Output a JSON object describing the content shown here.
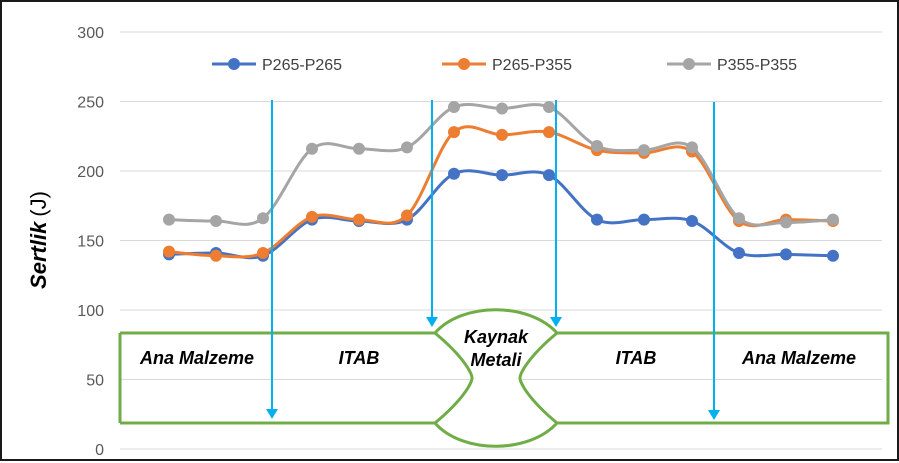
{
  "chart_data": {
    "type": "line",
    "ylabel_main": "Sertlik",
    "ylabel_unit": "(J)",
    "ylim": [
      0,
      300
    ],
    "yticks": [
      0,
      50,
      100,
      150,
      200,
      250,
      300
    ],
    "grid": true,
    "legend_position": "top",
    "point_count": 15,
    "series": [
      {
        "name": "P265-P265",
        "color": "#4472C4",
        "values": [
          140,
          141,
          139,
          165,
          164,
          165,
          198,
          197,
          197,
          165,
          165,
          164,
          141,
          140,
          139
        ]
      },
      {
        "name": "P265-P355",
        "color": "#ED7D31",
        "values": [
          142,
          139,
          141,
          167,
          165,
          168,
          228,
          226,
          228,
          215,
          213,
          214,
          164,
          165,
          164
        ]
      },
      {
        "name": "P355-P355",
        "color": "#A5A5A5",
        "values": [
          165,
          164,
          166,
          216,
          216,
          217,
          246,
          245,
          246,
          218,
          215,
          217,
          166,
          163,
          165
        ]
      }
    ],
    "zones": [
      "Ana Malzeme",
      "ITAB",
      "Kaynak Metali",
      "ITAB",
      "Ana Malzeme"
    ],
    "zone_weld_line1": "Kaynak",
    "zone_weld_line2": "Metali",
    "zone_color": "#70AD47",
    "arrow_color": "#00B0F0"
  }
}
